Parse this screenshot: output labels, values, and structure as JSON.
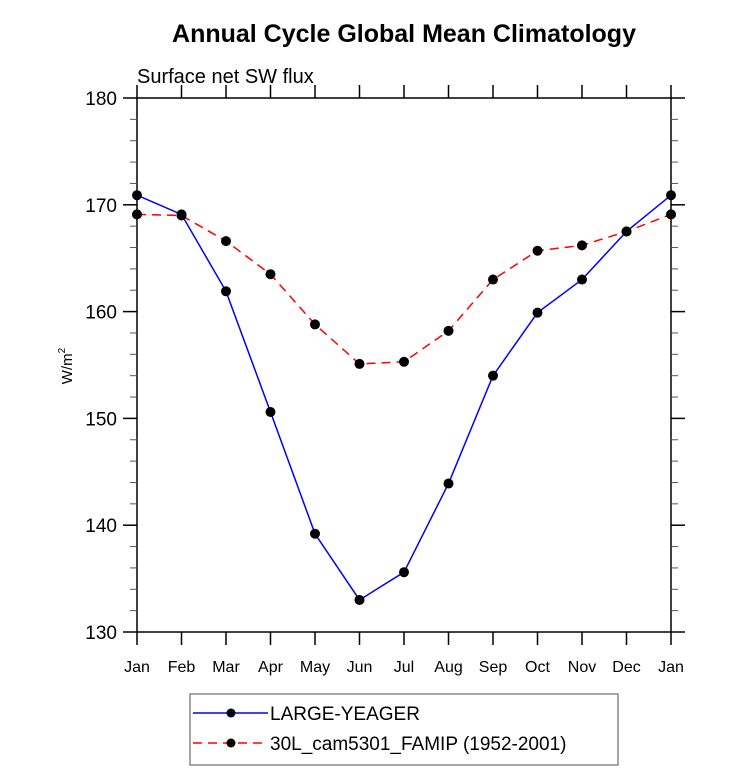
{
  "chart_data": {
    "type": "line",
    "title": "Annual Cycle Global Mean Climatology",
    "subtitle": "Surface net SW flux",
    "xlabel": "",
    "ylabel": "W/m",
    "ylabel_superscript": "2",
    "categories": [
      "Jan",
      "Feb",
      "Mar",
      "Apr",
      "May",
      "Jun",
      "Jul",
      "Aug",
      "Sep",
      "Oct",
      "Nov",
      "Dec",
      "Jan"
    ],
    "ylim": [
      130,
      180
    ],
    "yticks": [
      130,
      140,
      150,
      160,
      170,
      180
    ],
    "yminor_step": 2,
    "grid": false,
    "legend_position": "bottom-center",
    "series": [
      {
        "name": "LARGE-YEAGER",
        "color": "#0000ff",
        "line_style": "solid",
        "marker": "filled-circle",
        "values": [
          170.9,
          169.1,
          161.9,
          150.6,
          139.2,
          133.0,
          135.6,
          143.9,
          154.0,
          159.9,
          163.0,
          167.5,
          170.9
        ]
      },
      {
        "name": "30L_cam5301_FAMIP (1952-2001)",
        "color": "#ff0000",
        "line_style": "dashed",
        "marker": "filled-circle",
        "values": [
          169.1,
          169.0,
          166.6,
          163.5,
          158.8,
          155.1,
          155.3,
          158.2,
          163.0,
          165.7,
          166.2,
          167.5,
          169.1
        ]
      }
    ]
  }
}
